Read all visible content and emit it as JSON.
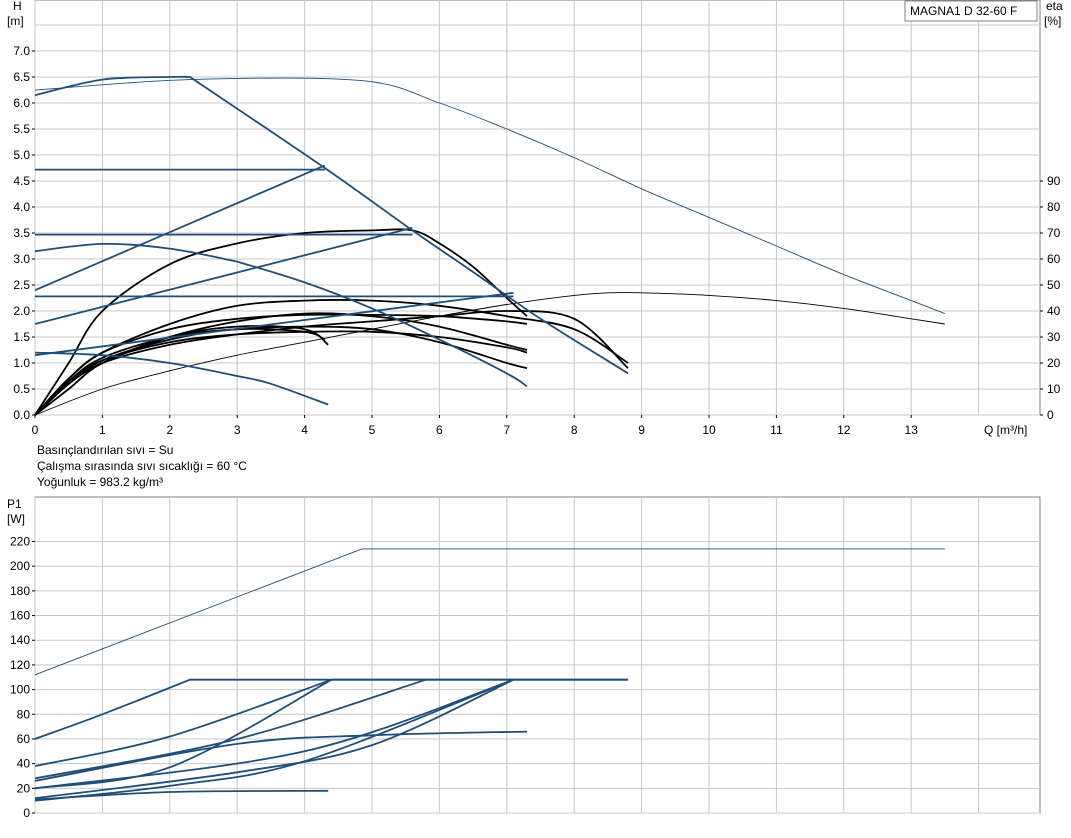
{
  "colors": {
    "curve": "#1f4e79",
    "eta": "#000000",
    "grid": "#c8c8c8",
    "frame": "#808080"
  },
  "info": {
    "model": "MAGNA1 D 32-60 F",
    "lines": [
      "Basınçlandırılan sıvı = Su",
      "Çalışma sırasında sıvı sıcaklığı = 60 °C",
      "Yoğunluk = 983.2 kg/m³"
    ]
  },
  "chart_data": [
    {
      "type": "line",
      "name": "head",
      "xlabel": "Q [m³/h]",
      "ylabel_top": "H",
      "ylabel_unit": "[m]",
      "y2label_top": "eta",
      "y2label_unit": "[%]",
      "xlim": [
        0,
        15
      ],
      "ylim": [
        0,
        8
      ],
      "y2lim": [
        0,
        175
      ],
      "xticks": [
        0,
        1,
        2,
        3,
        4,
        5,
        6,
        7,
        8,
        9,
        10,
        11,
        12,
        13
      ],
      "yticks": [
        "0.0",
        "0.5",
        "1.0",
        "1.5",
        "2.0",
        "2.5",
        "3.0",
        "3.5",
        "4.0",
        "4.5",
        "5.0",
        "5.5",
        "6.0",
        "6.5",
        "7.0"
      ],
      "y2ticks": [
        0,
        10,
        20,
        30,
        40,
        50,
        60,
        70,
        80,
        90
      ],
      "head_curves": [
        {
          "style": "thin",
          "points": [
            [
              0,
              6.25
            ],
            [
              2.3,
              6.45
            ],
            [
              4.85,
              6.43
            ],
            [
              6,
              6.0
            ],
            [
              7,
              5.5
            ],
            [
              8,
              4.95
            ],
            [
              9,
              4.35
            ],
            [
              10,
              3.8
            ],
            [
              11,
              3.25
            ],
            [
              12,
              2.7
            ],
            [
              13,
              2.2
            ],
            [
              13.5,
              1.95
            ]
          ]
        },
        {
          "style": "bold",
          "points": [
            [
              0,
              6.15
            ],
            [
              1,
              6.45
            ],
            [
              2,
              6.5
            ],
            [
              2.3,
              6.5
            ],
            [
              4.3,
              4.75
            ],
            [
              5.6,
              3.55
            ],
            [
              6.5,
              2.75
            ],
            [
              7.5,
              1.85
            ],
            [
              8.8,
              0.8
            ]
          ]
        },
        {
          "style": "bold",
          "points": [
            [
              0,
              4.72
            ],
            [
              4.3,
              4.72
            ]
          ]
        },
        {
          "style": "bold",
          "points": [
            [
              0,
              2.4
            ],
            [
              4.3,
              4.8
            ]
          ]
        },
        {
          "style": "bold",
          "points": [
            [
              0,
              3.47
            ],
            [
              5.6,
              3.47
            ]
          ]
        },
        {
          "style": "bold",
          "points": [
            [
              0,
              1.75
            ],
            [
              5.6,
              3.6
            ]
          ]
        },
        {
          "style": "bold",
          "points": [
            [
              0,
              2.28
            ],
            [
              7.1,
              2.28
            ]
          ]
        },
        {
          "style": "bold",
          "points": [
            [
              0,
              1.15
            ],
            [
              7.1,
              2.35
            ]
          ]
        },
        {
          "style": "bold",
          "points": [
            [
              0,
              3.15
            ],
            [
              1,
              3.29
            ],
            [
              2,
              3.2
            ],
            [
              3,
              2.95
            ],
            [
              4,
              2.55
            ],
            [
              5,
              2.05
            ],
            [
              6,
              1.45
            ],
            [
              7,
              0.8
            ],
            [
              7.3,
              0.55
            ]
          ]
        },
        {
          "style": "bold",
          "points": [
            [
              0,
              1.2
            ],
            [
              1,
              1.15
            ],
            [
              2,
              1.0
            ],
            [
              3,
              0.75
            ],
            [
              3.5,
              0.6
            ],
            [
              4.35,
              0.2
            ]
          ]
        }
      ],
      "eta_curves": [
        {
          "style": "thin",
          "points": [
            [
              0,
              0
            ],
            [
              1,
              10
            ],
            [
              2,
              17
            ],
            [
              3,
              23
            ],
            [
              4,
              28
            ],
            [
              5,
              33
            ],
            [
              6,
              38
            ],
            [
              7,
              42.5
            ],
            [
              8,
              46
            ],
            [
              8.5,
              47
            ],
            [
              9,
              47
            ],
            [
              10,
              46
            ],
            [
              11,
              44
            ],
            [
              12,
              41
            ],
            [
              13,
              37
            ],
            [
              13.5,
              35
            ]
          ]
        },
        {
          "style": "bold",
          "points": [
            [
              0,
              0
            ],
            [
              0.5,
              12
            ],
            [
              1,
              20
            ],
            [
              2,
              27
            ],
            [
              3,
              31
            ],
            [
              4,
              34
            ],
            [
              5,
              36
            ],
            [
              6,
              38
            ],
            [
              7,
              40
            ],
            [
              8,
              37
            ],
            [
              8.8,
              18
            ]
          ]
        },
        {
          "style": "bold",
          "points": [
            [
              0,
              0
            ],
            [
              0.5,
              14
            ],
            [
              1,
              24
            ],
            [
              2,
              33
            ],
            [
              3,
              37
            ],
            [
              4,
              38.5
            ],
            [
              5,
              38.5
            ],
            [
              6,
              38
            ],
            [
              7,
              36
            ],
            [
              7.3,
              35
            ]
          ]
        },
        {
          "style": "bold",
          "points": [
            [
              0,
              0
            ],
            [
              0.5,
              13
            ],
            [
              1,
              21
            ],
            [
              2,
              28
            ],
            [
              3,
              31
            ],
            [
              4,
              32
            ],
            [
              5,
              32
            ],
            [
              6,
              30
            ],
            [
              7,
              26
            ],
            [
              7.3,
              24
            ]
          ]
        },
        {
          "style": "bold",
          "points": [
            [
              0,
              0
            ],
            [
              0.5,
              13
            ],
            [
              1,
              22
            ],
            [
              2,
              30
            ],
            [
              3,
              33
            ],
            [
              4,
              34
            ],
            [
              5,
              33
            ],
            [
              6,
              28
            ],
            [
              7,
              20
            ],
            [
              7.3,
              18
            ]
          ]
        },
        {
          "style": "bold",
          "points": [
            [
              0,
              0
            ],
            [
              0.5,
              14
            ],
            [
              1,
              24
            ],
            [
              2,
              35
            ],
            [
              3,
              42
            ],
            [
              4,
              44
            ],
            [
              5,
              44
            ],
            [
              6,
              42
            ],
            [
              7,
              38
            ],
            [
              8,
              33
            ],
            [
              8.8,
              20
            ]
          ]
        },
        {
          "style": "bold",
          "points": [
            [
              0,
              0
            ],
            [
              0.5,
              12
            ],
            [
              1,
              20
            ],
            [
              2,
              30
            ],
            [
              3,
              36
            ],
            [
              4,
              39
            ],
            [
              5,
              38
            ],
            [
              6,
              34
            ],
            [
              7,
              27
            ],
            [
              7.3,
              25
            ]
          ]
        },
        {
          "style": "bold",
          "points": [
            [
              0,
              0
            ],
            [
              0.5,
              12
            ],
            [
              1,
              21
            ],
            [
              2,
              29
            ],
            [
              3,
              33
            ],
            [
              4,
              32
            ],
            [
              4.3,
              29
            ]
          ]
        },
        {
          "style": "bold",
          "points": [
            [
              0,
              0
            ],
            [
              0.5,
              20
            ],
            [
              1,
              40
            ],
            [
              2,
              58
            ],
            [
              3,
              66
            ],
            [
              4,
              70
            ],
            [
              5,
              71
            ],
            [
              5.6,
              71
            ],
            [
              6,
              66
            ],
            [
              6.5,
              57
            ],
            [
              7,
              45
            ],
            [
              7.3,
              38
            ]
          ]
        },
        {
          "style": "bold",
          "points": [
            [
              0,
              0
            ],
            [
              0.5,
              10
            ],
            [
              1,
              20
            ],
            [
              2,
              30
            ],
            [
              3,
              34
            ],
            [
              4,
              33
            ],
            [
              4.35,
              27
            ]
          ]
        }
      ]
    },
    {
      "type": "line",
      "name": "power",
      "ylabel_top": "P1",
      "ylabel_unit": "[W]",
      "xlim": [
        0,
        15
      ],
      "ylim": [
        0,
        240
      ],
      "yticks": [
        0,
        20,
        40,
        60,
        80,
        100,
        120,
        140,
        160,
        180,
        200,
        220
      ],
      "power_curves": [
        {
          "style": "thin",
          "points": [
            [
              0,
              112
            ],
            [
              4.85,
              214
            ],
            [
              13.5,
              214
            ]
          ]
        },
        {
          "style": "bold",
          "points": [
            [
              0,
              60
            ],
            [
              1,
              80
            ],
            [
              2.3,
              108
            ],
            [
              8.8,
              108
            ]
          ]
        },
        {
          "style": "bold",
          "points": [
            [
              0,
              38
            ],
            [
              2,
              62
            ],
            [
              4.4,
              108
            ],
            [
              8.8,
              108
            ]
          ]
        },
        {
          "style": "bold",
          "points": [
            [
              0,
              20
            ],
            [
              2,
              37
            ],
            [
              4.4,
              108
            ]
          ]
        },
        {
          "style": "bold",
          "points": [
            [
              0,
              28
            ],
            [
              3,
              60
            ],
            [
              5.8,
              108
            ]
          ]
        },
        {
          "style": "bold",
          "points": [
            [
              0,
              20
            ],
            [
              4,
              50
            ],
            [
              7.1,
              108
            ]
          ]
        },
        {
          "style": "bold",
          "points": [
            [
              0,
              10
            ],
            [
              2,
              22
            ],
            [
              4,
              42
            ],
            [
              7.1,
              108
            ]
          ]
        },
        {
          "style": "bold",
          "points": [
            [
              0,
              12
            ],
            [
              3,
              33
            ],
            [
              5,
              55
            ],
            [
              7.1,
              108
            ]
          ]
        },
        {
          "style": "bold",
          "points": [
            [
              0,
              26
            ],
            [
              3,
              56
            ],
            [
              5,
              63
            ],
            [
              7.3,
              66
            ]
          ]
        },
        {
          "style": "bold",
          "points": [
            [
              0,
              11
            ],
            [
              2,
              17
            ],
            [
              4.35,
              18
            ]
          ]
        }
      ]
    }
  ]
}
